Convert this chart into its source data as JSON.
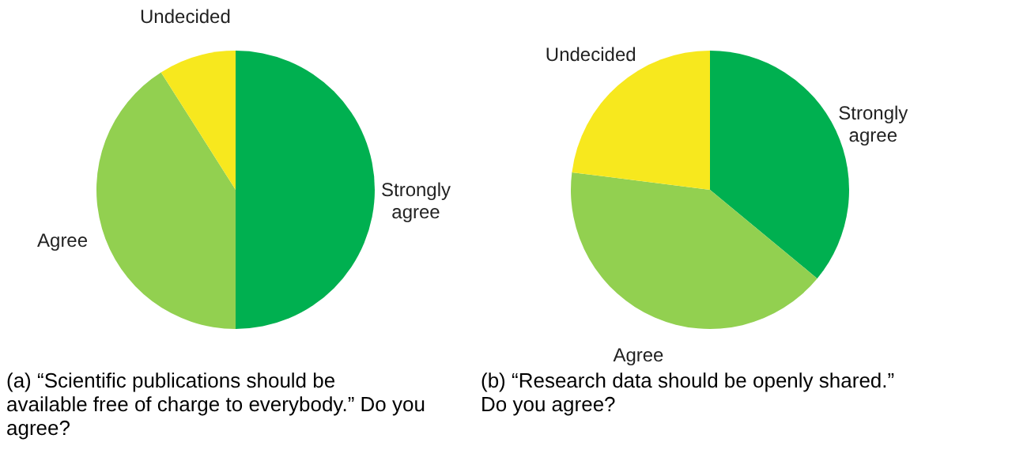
{
  "chart_data": [
    {
      "type": "pie",
      "title": "(a) “Scientific publications should be available free of charge to everybody.” Do you agree?",
      "categories": [
        "Strongly agree",
        "Agree",
        "Undecided"
      ],
      "values": [
        50,
        41,
        9
      ],
      "colors": [
        "#00b050",
        "#92d050",
        "#f7e81e"
      ],
      "legend": false
    },
    {
      "type": "pie",
      "title": "(b) “Research data should be openly shared.” Do you agree?",
      "categories": [
        "Strongly agree",
        "Agree",
        "Undecided"
      ],
      "values": [
        36,
        41,
        23
      ],
      "colors": [
        "#00b050",
        "#92d050",
        "#f7e81e"
      ],
      "legend": false
    }
  ]
}
